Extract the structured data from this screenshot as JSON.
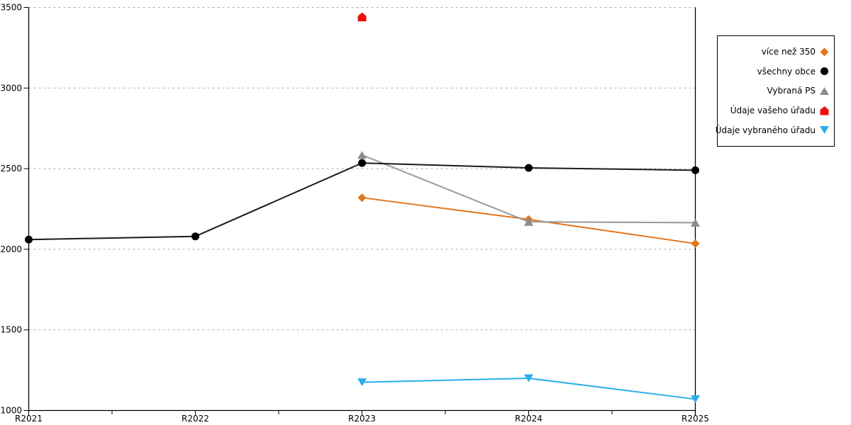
{
  "chart_data": {
    "type": "line",
    "title": "",
    "xlabel": "",
    "ylabel": "",
    "x_categories": [
      "R2021",
      "R2022",
      "R2023",
      "R2024",
      "R2025"
    ],
    "y_ticks": [
      1000,
      1500,
      2000,
      2500,
      3000,
      3500
    ],
    "ylim": [
      1000,
      3500
    ],
    "grid": "horizontal dotted",
    "legend_position": "right",
    "colors": {
      "grid": "#ABABAB",
      "axis": "#000000"
    },
    "series": [
      {
        "name": "více než 350",
        "marker": "diamond",
        "color": "#E2751D",
        "x": [
          "R2023",
          "R2024",
          "R2025"
        ],
        "values": [
          2320,
          2185,
          2035
        ],
        "has_line": true
      },
      {
        "name": "všechny obce",
        "marker": "circle",
        "color": "#000000",
        "line_color": "#1A1A1A",
        "x": [
          "R2021",
          "R2022",
          "R2023",
          "R2024",
          "R2025"
        ],
        "values": [
          2060,
          2080,
          2535,
          2505,
          2490
        ],
        "has_line": true
      },
      {
        "name": "Vybraná PS",
        "marker": "triangle-up",
        "color": "#8C8C8C",
        "line_color": "#999999",
        "x": [
          "R2023",
          "R2024",
          "R2025"
        ],
        "values": [
          2585,
          2170,
          2165
        ],
        "has_line": true
      },
      {
        "name": "Údaje vašeho úřadu",
        "marker": "pentagon",
        "color": "#EC0F0F",
        "x": [
          "R2023"
        ],
        "values": [
          3440
        ],
        "has_line": false
      },
      {
        "name": "Údaje vybraného úřadu",
        "marker": "triangle-down",
        "color": "#2AAEE8",
        "x": [
          "R2023",
          "R2024",
          "R2025"
        ],
        "values": [
          1175,
          1200,
          1070
        ],
        "has_line": true
      }
    ]
  }
}
